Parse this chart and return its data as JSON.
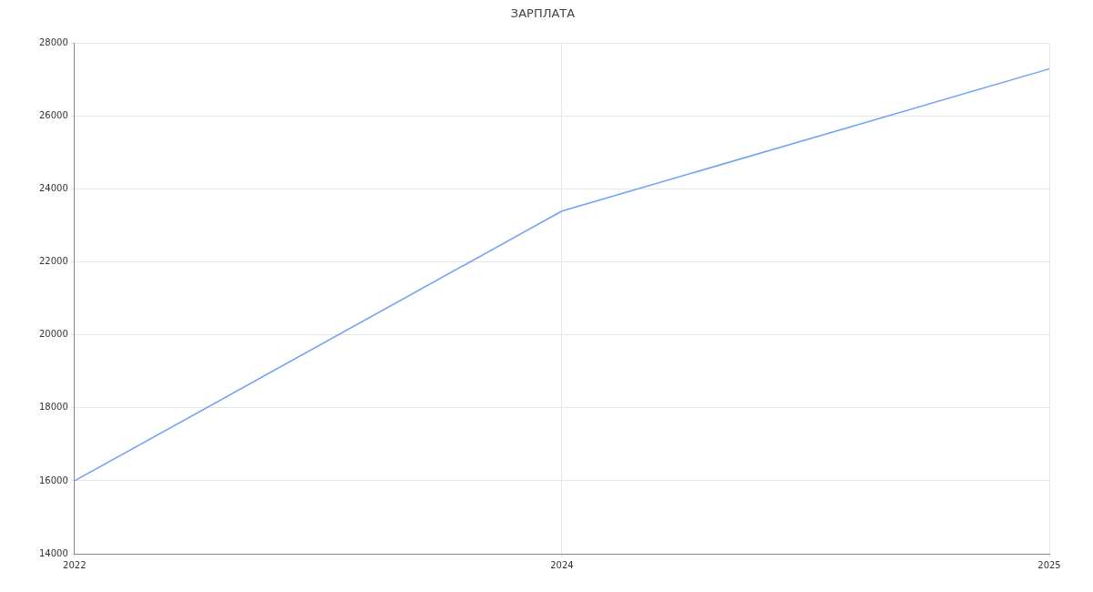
{
  "chart_data": {
    "type": "line",
    "title": "ЗАРПЛАТА",
    "categories": [
      "2022",
      "2024",
      "2025"
    ],
    "series": [
      {
        "color": "#6f9ff5",
        "values": [
          16000,
          23400,
          27300
        ]
      }
    ],
    "ylim": [
      14000,
      28000
    ],
    "yticks": [
      14000,
      16000,
      18000,
      20000,
      22000,
      24000,
      26000,
      28000
    ],
    "grid": true,
    "legend": false,
    "marker": "none",
    "line_style": "solid"
  }
}
